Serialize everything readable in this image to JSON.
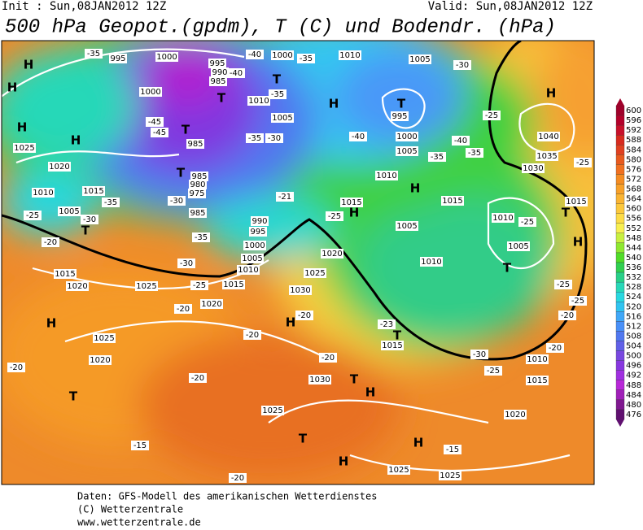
{
  "header": {
    "init": "Init : Sun,08JAN2012 12Z",
    "valid": "Valid: Sun,08JAN2012 12Z",
    "title": "500 hPa Geopot.(gpdm), T (C) und Bodendr. (hPa)"
  },
  "map_labels": [
    "H",
    "H",
    "H",
    "H",
    "H",
    "H",
    "H",
    "H",
    "H",
    "H",
    "H",
    "H",
    "H",
    "H",
    "T",
    "T",
    "T",
    "T",
    "T",
    "T",
    "T",
    "T",
    "T",
    "T",
    "T",
    "T",
    "995",
    "1000",
    "1000",
    "1000",
    "995",
    "990",
    "985",
    "1010",
    "1005",
    "1010",
    "1005",
    "995",
    "1000",
    "1005",
    "1010",
    "1025",
    "1020",
    "1010",
    "1015",
    "1005",
    "985",
    "985",
    "980",
    "975",
    "985",
    "990",
    "995",
    "1000",
    "1005",
    "1010",
    "1015",
    "1020",
    "1025",
    "1030",
    "1020",
    "1015",
    "1020",
    "1025",
    "1025",
    "1020",
    "1030",
    "1025",
    "1015",
    "1015",
    "1010",
    "1005",
    "1005",
    "1010",
    "1015",
    "1010",
    "1015",
    "1020",
    "1040",
    "1035",
    "1030",
    "1015",
    "1025",
    "1025",
    "-35",
    "-40",
    "-35",
    "-30",
    "-40",
    "-35",
    "-45",
    "-45",
    "-35",
    "-30",
    "-40",
    "-40",
    "-35",
    "-35",
    "-25",
    "-25",
    "-30",
    "-21",
    "-25",
    "-35",
    "-30",
    "-25",
    "-20",
    "-35",
    "-30",
    "-25",
    "-25",
    "-25",
    "-25",
    "-20",
    "-20",
    "-20",
    "-20",
    "-23",
    "-20",
    "-20",
    "-20",
    "-30",
    "-25",
    "-20",
    "-15",
    "-15",
    "-20"
  ],
  "scale": {
    "values": [
      600,
      596,
      592,
      588,
      584,
      580,
      576,
      572,
      568,
      564,
      560,
      556,
      552,
      548,
      544,
      540,
      536,
      532,
      528,
      524,
      520,
      516,
      512,
      508,
      504,
      500,
      496,
      492,
      488,
      484,
      480,
      476
    ],
    "colors": [
      "#a0002a",
      "#b4002a",
      "#c8102a",
      "#d82a1e",
      "#e04020",
      "#e85a1e",
      "#f07020",
      "#f58c22",
      "#f8a028",
      "#fab432",
      "#fcc83c",
      "#fddc46",
      "#f8ef50",
      "#c8f040",
      "#8ee830",
      "#50dc28",
      "#30d050",
      "#28d088",
      "#28d8b8",
      "#28d8e0",
      "#30c4f0",
      "#40a8f8",
      "#4890f8",
      "#5078f0",
      "#6060e8",
      "#7848e0",
      "#8838e0",
      "#a030e0",
      "#b828d8",
      "#a020b8",
      "#801890",
      "#601070"
    ]
  },
  "footer": {
    "line1": "Daten: GFS-Modell des amerikanischen Wetterdienstes",
    "line2": "(C) Wetterzentrale",
    "line3": "www.wetterzentrale.de"
  }
}
